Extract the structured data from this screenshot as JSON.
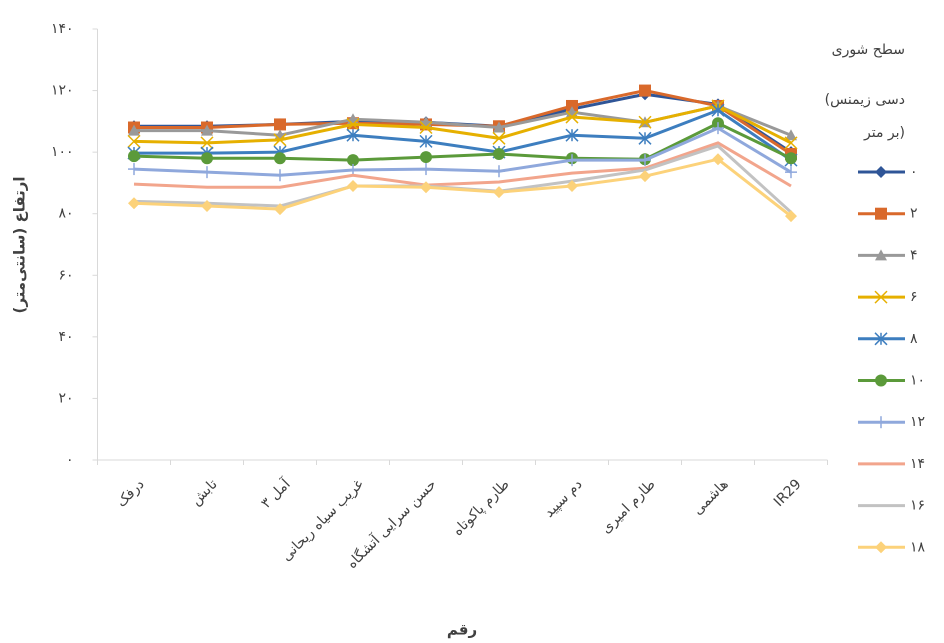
{
  "chart_data": {
    "type": "line",
    "y_label": "ارتفاع (سانتی‌متر)",
    "x_label": "رقم",
    "legend_title": [
      "سطح شوری",
      "(دسی زیمنس",
      "بر متر)"
    ],
    "legend": "right",
    "grid": false,
    "categories": [
      "درفک",
      "تابش",
      "آمل ۳",
      "غریب سیاه ریحانی",
      "حسن سرایی آتشگاه",
      "طارم پاکوتاه",
      "دم سپید",
      "طارم امیری",
      "هاشمی",
      "IR29"
    ],
    "ylim": [
      0,
      140
    ],
    "yticks": [
      {
        "value": 0,
        "label": "۰"
      },
      {
        "value": 20,
        "label": "۲۰"
      },
      {
        "value": 40,
        "label": "۴۰"
      },
      {
        "value": 60,
        "label": "۶۰"
      },
      {
        "value": 80,
        "label": "۸۰"
      },
      {
        "value": 100,
        "label": "۱۰۰"
      },
      {
        "value": 120,
        "label": "۱۲۰"
      },
      {
        "value": 140,
        "label": "۱۴۰"
      }
    ],
    "series": [
      {
        "name": "۰",
        "color": "#2f5597",
        "marker": "diamond",
        "values": [
          108.4,
          108.4,
          109,
          110,
          109.7,
          108.4,
          114,
          118.8,
          115.5,
          100
        ]
      },
      {
        "name": "۲",
        "color": "#d9692b",
        "marker": "square",
        "values": [
          108,
          108,
          109,
          109.4,
          109,
          108.4,
          115,
          120,
          115,
          99.4
        ]
      },
      {
        "name": "۴",
        "color": "#999999",
        "marker": "triangle",
        "values": [
          107,
          107,
          105.5,
          110.7,
          109.7,
          108,
          113,
          109.7,
          115,
          105.5
        ]
      },
      {
        "name": "۶",
        "color": "#e6b000",
        "marker": "x",
        "values": [
          103.5,
          103,
          104,
          109,
          108,
          104.5,
          111.4,
          109.7,
          115,
          103
        ]
      },
      {
        "name": "۸",
        "color": "#3d7ebf",
        "marker": "asterisk",
        "values": [
          99.7,
          99.7,
          100,
          105.5,
          103.5,
          100,
          105.5,
          104.5,
          113.6,
          97.4
        ]
      },
      {
        "name": "۱۰",
        "color": "#5b9a3a",
        "marker": "circle",
        "values": [
          98.7,
          98,
          98,
          97.4,
          98.4,
          99.4,
          98,
          97.7,
          109.4,
          98
        ]
      },
      {
        "name": "۱۲",
        "color": "#8fa8dc",
        "marker": "plus",
        "values": [
          94.5,
          93.5,
          92.5,
          94.2,
          94.5,
          93.8,
          97.4,
          97.4,
          107.8,
          93.5
        ]
      },
      {
        "name": "۱۴",
        "color": "#f2a58c",
        "marker": "none",
        "values": [
          89.6,
          88.6,
          88.6,
          92.5,
          89.3,
          90.3,
          93.2,
          94.8,
          103,
          89
        ]
      },
      {
        "name": "۱۶",
        "color": "#c2c2c2",
        "marker": "none",
        "values": [
          84,
          83.4,
          82.5,
          89,
          89,
          87.3,
          90.6,
          94.2,
          102,
          80.5
        ]
      },
      {
        "name": "۱۸",
        "color": "#fcd27a",
        "marker": "diamond",
        "values": [
          83.4,
          82.5,
          81.5,
          89,
          88.6,
          87,
          89,
          92.2,
          97.7,
          79.2
        ]
      }
    ]
  }
}
